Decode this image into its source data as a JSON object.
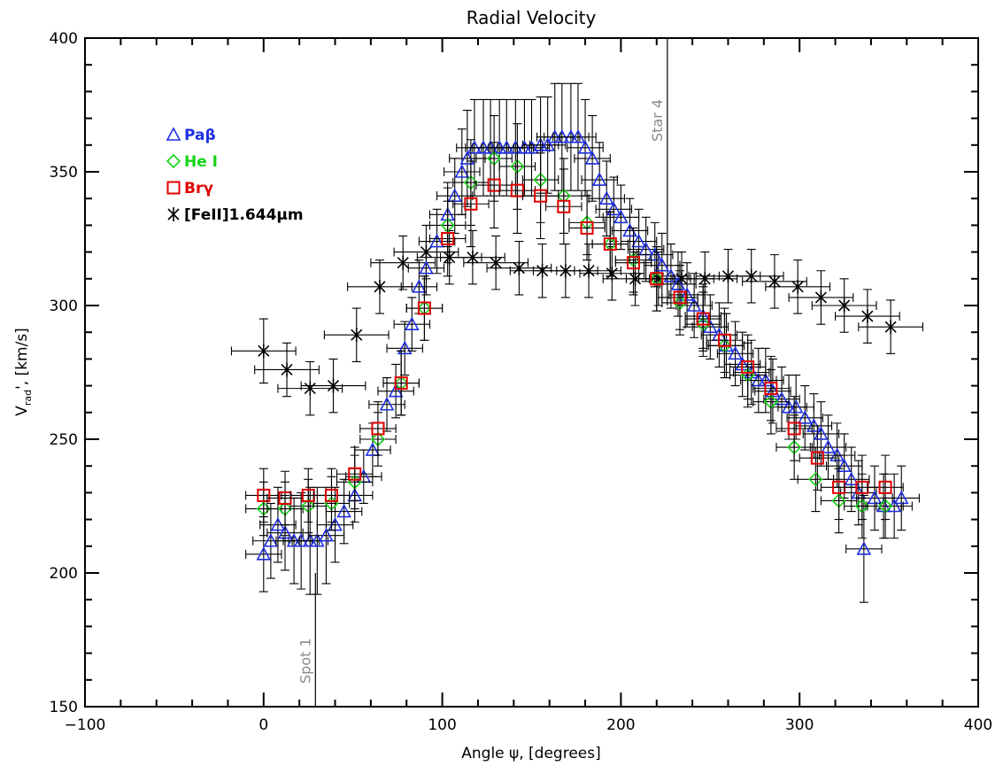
{
  "chart_data": {
    "type": "scatter",
    "title": "Radial Velocity",
    "xlabel": "Angle ψ, [degrees]",
    "ylabel_main": "V",
    "ylabel_sub": "rad",
    "ylabel_rest": "', [km/s]",
    "xlim": [
      -100,
      400
    ],
    "ylim": [
      150,
      400
    ],
    "xticks": [
      -100,
      0,
      100,
      200,
      300,
      400
    ],
    "yticks": [
      150,
      200,
      250,
      300,
      350,
      400
    ],
    "xtick_labels": [
      "−100",
      "0",
      "100",
      "200",
      "300",
      "400"
    ],
    "ytick_labels": [
      "150",
      "200",
      "250",
      "300",
      "350",
      "400"
    ],
    "grid": false,
    "legend_position": "upper-left",
    "series": [
      {
        "name": "Paβ",
        "marker": "triangle",
        "color": "#1f2fe0",
        "points": [
          [
            0,
            207,
            10,
            14
          ],
          [
            4,
            212,
            10,
            14
          ],
          [
            8,
            218,
            10,
            14
          ],
          [
            12,
            215,
            10,
            14
          ],
          [
            17,
            212,
            10,
            16
          ],
          [
            21,
            212,
            10,
            18
          ],
          [
            26,
            212,
            10,
            20
          ],
          [
            30,
            212,
            10,
            20
          ],
          [
            35,
            214,
            10,
            18
          ],
          [
            40,
            218,
            10,
            14
          ],
          [
            45,
            223,
            10,
            12
          ],
          [
            51,
            229,
            10,
            10
          ],
          [
            56,
            236,
            10,
            10
          ],
          [
            61,
            246,
            10,
            10
          ],
          [
            69,
            263,
            10,
            10
          ],
          [
            74,
            268,
            10,
            10
          ],
          [
            79,
            284,
            10,
            10
          ],
          [
            83,
            293,
            10,
            10
          ],
          [
            87,
            307,
            10,
            10
          ],
          [
            91,
            314,
            10,
            10
          ],
          [
            97,
            324,
            10,
            12
          ],
          [
            103,
            334,
            10,
            12
          ],
          [
            107,
            341,
            10,
            14
          ],
          [
            111,
            350,
            10,
            16
          ],
          [
            114,
            355,
            10,
            18
          ],
          [
            118,
            359,
            10,
            18
          ],
          [
            123,
            359,
            10,
            18
          ],
          [
            127,
            359,
            10,
            18
          ],
          [
            132,
            359,
            10,
            18
          ],
          [
            136,
            359,
            10,
            18
          ],
          [
            141,
            359,
            10,
            18
          ],
          [
            146,
            359,
            10,
            18
          ],
          [
            150,
            359,
            10,
            18
          ],
          [
            155,
            360,
            10,
            18
          ],
          [
            159,
            360,
            10,
            18
          ],
          [
            163,
            363,
            10,
            20
          ],
          [
            167,
            363,
            10,
            20
          ],
          [
            172,
            363,
            10,
            20
          ],
          [
            176,
            363,
            10,
            20
          ],
          [
            180,
            359,
            10,
            18
          ],
          [
            184,
            355,
            10,
            16
          ],
          [
            188,
            347,
            10,
            14
          ],
          [
            192,
            340,
            10,
            14
          ],
          [
            196,
            336,
            10,
            12
          ],
          [
            200,
            333,
            10,
            12
          ],
          [
            205,
            328,
            10,
            12
          ],
          [
            210,
            324,
            10,
            12
          ],
          [
            214,
            321,
            10,
            12
          ],
          [
            219,
            319,
            10,
            12
          ],
          [
            223,
            315,
            10,
            12
          ],
          [
            228,
            311,
            10,
            12
          ],
          [
            232,
            308,
            10,
            12
          ],
          [
            237,
            304,
            10,
            12
          ],
          [
            241,
            300,
            10,
            12
          ],
          [
            246,
            296,
            10,
            12
          ],
          [
            250,
            292,
            10,
            12
          ],
          [
            255,
            289,
            10,
            12
          ],
          [
            259,
            285,
            10,
            12
          ],
          [
            264,
            282,
            10,
            12
          ],
          [
            268,
            278,
            10,
            12
          ],
          [
            273,
            275,
            10,
            12
          ],
          [
            277,
            272,
            10,
            12
          ],
          [
            281,
            272,
            10,
            12
          ],
          [
            285,
            268,
            10,
            12
          ],
          [
            290,
            265,
            10,
            12
          ],
          [
            294,
            262,
            10,
            12
          ],
          [
            298,
            262,
            10,
            12
          ],
          [
            303,
            258,
            10,
            12
          ],
          [
            308,
            255,
            10,
            12
          ],
          [
            312,
            252,
            10,
            12
          ],
          [
            316,
            247,
            10,
            12
          ],
          [
            321,
            244,
            10,
            12
          ],
          [
            325,
            240,
            10,
            12
          ],
          [
            329,
            235,
            10,
            12
          ],
          [
            333,
            230,
            10,
            12
          ],
          [
            336,
            209,
            10,
            20
          ],
          [
            342,
            228,
            10,
            12
          ],
          [
            347,
            225,
            10,
            12
          ],
          [
            353,
            225,
            10,
            12
          ],
          [
            357,
            228,
            10,
            12
          ]
        ]
      },
      {
        "name": "He I",
        "marker": "diamond",
        "color": "#16d416",
        "points": [
          [
            0,
            224,
            10,
            10
          ],
          [
            12,
            224,
            10,
            10
          ],
          [
            25,
            225,
            10,
            10
          ],
          [
            38,
            226,
            10,
            10
          ],
          [
            51,
            234,
            10,
            10
          ],
          [
            64,
            250,
            10,
            10
          ],
          [
            77,
            271,
            10,
            12
          ],
          [
            90,
            299,
            10,
            12
          ],
          [
            103,
            330,
            10,
            14
          ],
          [
            116,
            346,
            10,
            16
          ],
          [
            129,
            355,
            10,
            16
          ],
          [
            142,
            352,
            10,
            16
          ],
          [
            155,
            347,
            10,
            16
          ],
          [
            168,
            341,
            10,
            14
          ],
          [
            181,
            331,
            10,
            12
          ],
          [
            194,
            323,
            10,
            12
          ],
          [
            207,
            317,
            10,
            12
          ],
          [
            220,
            310,
            10,
            12
          ],
          [
            233,
            301,
            10,
            12
          ],
          [
            246,
            293,
            10,
            12
          ],
          [
            258,
            285,
            10,
            12
          ],
          [
            271,
            274,
            10,
            12
          ],
          [
            284,
            264,
            10,
            12
          ],
          [
            297,
            247,
            10,
            12
          ],
          [
            309,
            235,
            10,
            12
          ],
          [
            322,
            227,
            10,
            12
          ],
          [
            335,
            225,
            10,
            12
          ],
          [
            348,
            225,
            10,
            12
          ]
        ]
      },
      {
        "name": "Brγ",
        "marker": "square",
        "color": "#e00000",
        "points": [
          [
            0,
            229,
            10,
            10
          ],
          [
            12,
            228,
            10,
            10
          ],
          [
            25,
            229,
            10,
            10
          ],
          [
            38,
            229,
            10,
            10
          ],
          [
            51,
            237,
            10,
            10
          ],
          [
            64,
            254,
            10,
            10
          ],
          [
            77,
            271,
            10,
            12
          ],
          [
            90,
            299,
            10,
            12
          ],
          [
            103,
            325,
            10,
            14
          ],
          [
            116,
            338,
            10,
            16
          ],
          [
            129,
            345,
            10,
            16
          ],
          [
            142,
            343,
            10,
            16
          ],
          [
            155,
            341,
            10,
            16
          ],
          [
            168,
            337,
            10,
            14
          ],
          [
            181,
            329,
            10,
            12
          ],
          [
            194,
            323,
            10,
            12
          ],
          [
            207,
            316,
            10,
            12
          ],
          [
            220,
            310,
            10,
            12
          ],
          [
            233,
            303,
            10,
            12
          ],
          [
            246,
            295,
            10,
            12
          ],
          [
            258,
            287,
            10,
            12
          ],
          [
            271,
            277,
            10,
            12
          ],
          [
            284,
            269,
            10,
            12
          ],
          [
            297,
            254,
            10,
            12
          ],
          [
            310,
            243,
            10,
            12
          ],
          [
            322,
            232,
            10,
            12
          ],
          [
            335,
            232,
            10,
            12
          ],
          [
            348,
            232,
            10,
            12
          ]
        ]
      },
      {
        "name": "[FeII]1.644μm",
        "marker": "asterisk",
        "color": "#000000",
        "points": [
          [
            0,
            283,
            18,
            12
          ],
          [
            13,
            276,
            18,
            10
          ],
          [
            26,
            269,
            18,
            10
          ],
          [
            39,
            270,
            18,
            10
          ],
          [
            52,
            289,
            18,
            10
          ],
          [
            65,
            307,
            18,
            10
          ],
          [
            78,
            316,
            18,
            10
          ],
          [
            91,
            320,
            18,
            10
          ],
          [
            104,
            318,
            18,
            10
          ],
          [
            117,
            318,
            18,
            10
          ],
          [
            130,
            316,
            18,
            10
          ],
          [
            143,
            314,
            18,
            10
          ],
          [
            156,
            313,
            18,
            10
          ],
          [
            169,
            313,
            18,
            10
          ],
          [
            182,
            313,
            18,
            10
          ],
          [
            195,
            312,
            18,
            10
          ],
          [
            208,
            310,
            18,
            10
          ],
          [
            221,
            310,
            18,
            10
          ],
          [
            234,
            310,
            18,
            10
          ],
          [
            247,
            310,
            18,
            10
          ],
          [
            260,
            311,
            18,
            10
          ],
          [
            273,
            311,
            18,
            10
          ],
          [
            286,
            309,
            18,
            10
          ],
          [
            299,
            307,
            18,
            10
          ],
          [
            312,
            303,
            18,
            10
          ],
          [
            325,
            300,
            18,
            10
          ],
          [
            338,
            296,
            18,
            10
          ],
          [
            351,
            292,
            18,
            10
          ]
        ]
      }
    ],
    "annotations": [
      {
        "label": "Star 4",
        "x": 226
      },
      {
        "label": "Spot 1",
        "x": 29
      }
    ]
  }
}
